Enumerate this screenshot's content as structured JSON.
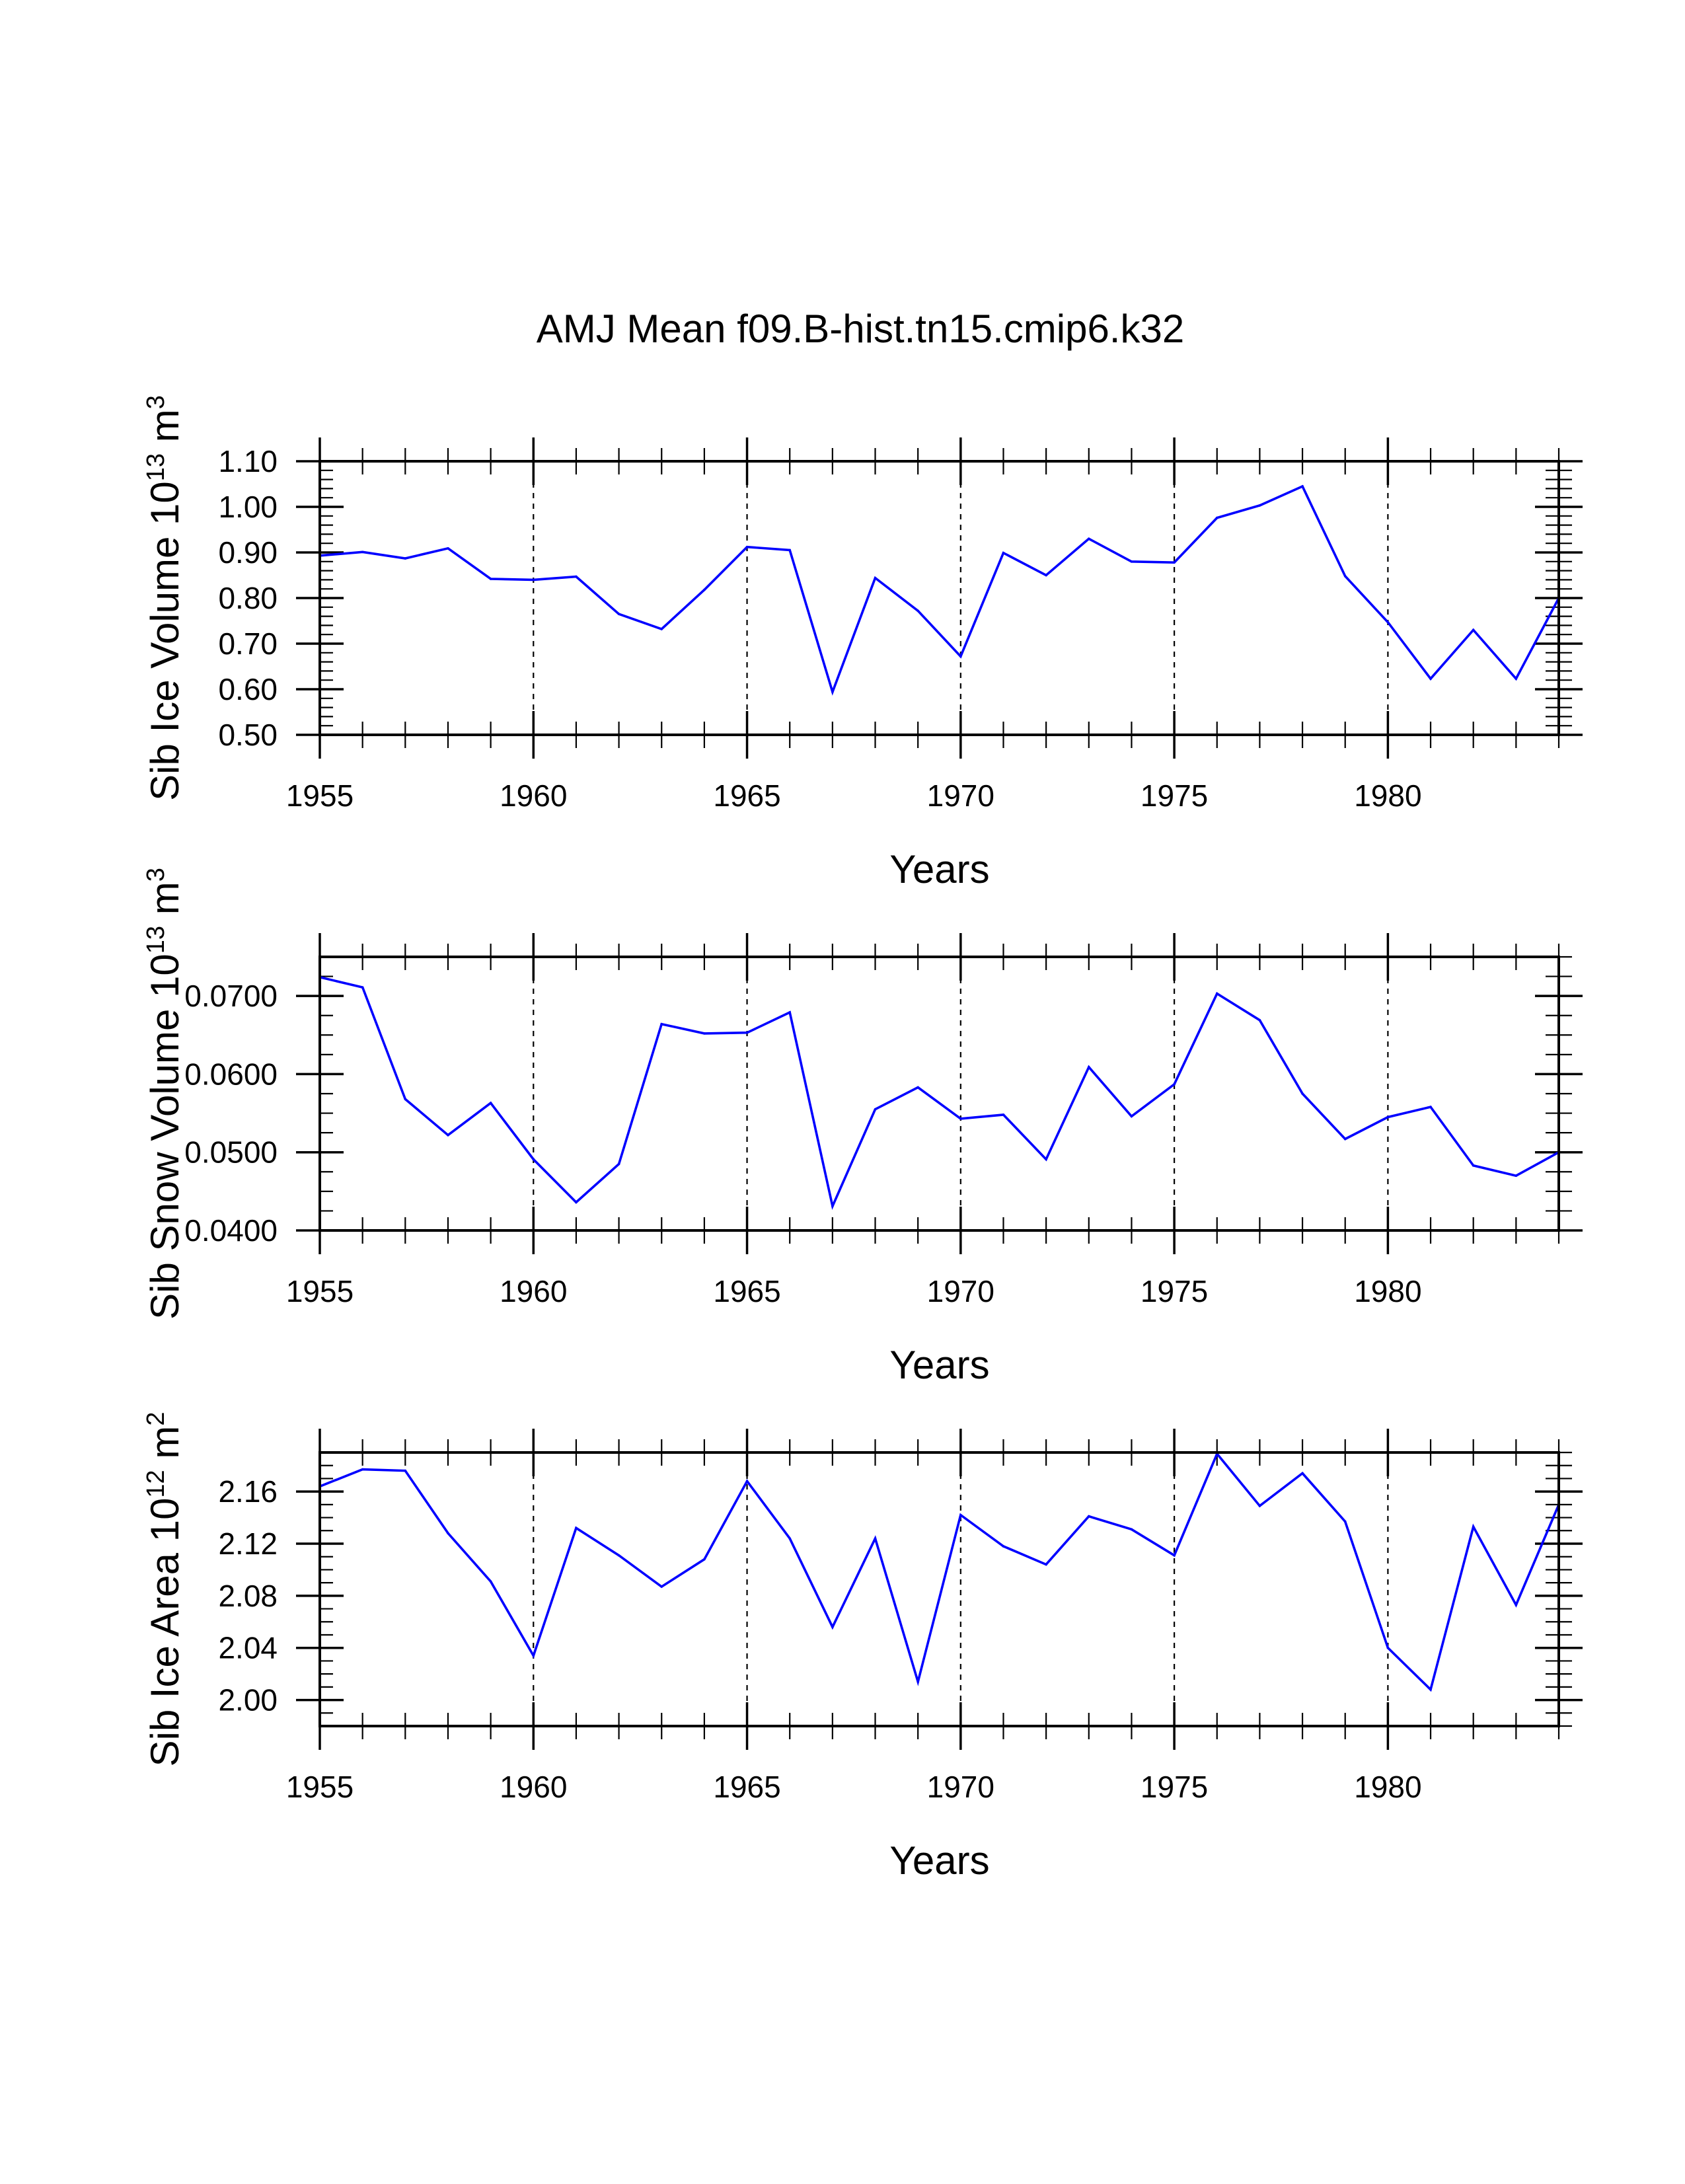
{
  "title": "AMJ Mean f09.B-hist.tn15.cmip6.k32",
  "colors": {
    "line": "#0000ff",
    "axes": "#000000",
    "background": "#ffffff"
  },
  "chart_data": [
    {
      "type": "line",
      "name": "ice-volume",
      "ylabel": "Sib Ice Volume 10",
      "ylabel_exp": "13",
      "ylabel_unit": " m",
      "ylabel_unit_exp": "3",
      "xlabel": "Years",
      "xlim": [
        1955,
        1984
      ],
      "ylim": [
        0.5,
        1.1
      ],
      "xticks": [
        1955,
        1960,
        1965,
        1970,
        1975,
        1980
      ],
      "yticks": [
        0.5,
        0.6,
        0.7,
        0.8,
        0.9,
        1.0,
        1.1
      ],
      "ytick_labels": [
        "0.50",
        "0.60",
        "0.70",
        "0.80",
        "0.90",
        "1.00",
        "1.10"
      ],
      "yminor_step": 0.02,
      "grid_x": [
        1960,
        1965,
        1970,
        1975,
        1980
      ],
      "x": [
        1955,
        1956,
        1957,
        1958,
        1959,
        1960,
        1961,
        1962,
        1963,
        1964,
        1965,
        1966,
        1967,
        1968,
        1969,
        1970,
        1971,
        1972,
        1973,
        1974,
        1975,
        1976,
        1977,
        1978,
        1979,
        1980,
        1981,
        1982,
        1983,
        1984
      ],
      "values": [
        0.893,
        0.901,
        0.887,
        0.909,
        0.842,
        0.84,
        0.847,
        0.765,
        0.732,
        0.818,
        0.912,
        0.905,
        0.594,
        0.844,
        0.772,
        0.672,
        0.899,
        0.85,
        0.93,
        0.88,
        0.878,
        0.976,
        1.003,
        1.045,
        0.848,
        0.747,
        0.623,
        0.73,
        0.623,
        0.8
      ]
    },
    {
      "type": "line",
      "name": "snow-volume",
      "ylabel": "Sib Snow Volume 10",
      "ylabel_exp": "13",
      "ylabel_unit": " m",
      "ylabel_unit_exp": "3",
      "xlabel": "Years",
      "xlim": [
        1955,
        1984
      ],
      "ylim": [
        0.04,
        0.075
      ],
      "xticks": [
        1955,
        1960,
        1965,
        1970,
        1975,
        1980
      ],
      "yticks": [
        0.04,
        0.05,
        0.06,
        0.07
      ],
      "ytick_labels": [
        "0.0400",
        "0.0500",
        "0.0600",
        "0.0700"
      ],
      "yminor_step": 0.0025,
      "grid_x": [
        1960,
        1965,
        1970,
        1975,
        1980
      ],
      "x": [
        1955,
        1956,
        1957,
        1958,
        1959,
        1960,
        1961,
        1962,
        1963,
        1964,
        1965,
        1966,
        1967,
        1968,
        1969,
        1970,
        1971,
        1972,
        1973,
        1974,
        1975,
        1976,
        1977,
        1978,
        1979,
        1980,
        1981,
        1982,
        1983,
        1984
      ],
      "values": [
        0.0724,
        0.0711,
        0.0568,
        0.0522,
        0.0563,
        0.0491,
        0.0436,
        0.0485,
        0.0664,
        0.0652,
        0.0653,
        0.0679,
        0.0431,
        0.0555,
        0.0583,
        0.0543,
        0.0548,
        0.0491,
        0.0609,
        0.0546,
        0.0587,
        0.0703,
        0.0669,
        0.0575,
        0.0517,
        0.0545,
        0.0558,
        0.0483,
        0.047,
        0.05
      ]
    },
    {
      "type": "line",
      "name": "ice-area",
      "ylabel": "Sib Ice Area 10",
      "ylabel_exp": "12",
      "ylabel_unit": " m",
      "ylabel_unit_exp": "2",
      "xlabel": "Years",
      "xlim": [
        1955,
        1984
      ],
      "ylim": [
        1.98,
        2.19
      ],
      "xticks": [
        1955,
        1960,
        1965,
        1970,
        1975,
        1980
      ],
      "yticks": [
        2.0,
        2.04,
        2.08,
        2.12,
        2.16
      ],
      "ytick_labels": [
        "2.00",
        "2.04",
        "2.08",
        "2.12",
        "2.16"
      ],
      "yminor_step": 0.01,
      "grid_x": [
        1960,
        1965,
        1970,
        1975,
        1980
      ],
      "x": [
        1955,
        1956,
        1957,
        1958,
        1959,
        1960,
        1961,
        1962,
        1963,
        1964,
        1965,
        1966,
        1967,
        1968,
        1969,
        1970,
        1971,
        1972,
        1973,
        1974,
        1975,
        1976,
        1977,
        1978,
        1979,
        1980,
        1981,
        1982,
        1983,
        1984
      ],
      "values": [
        2.164,
        2.177,
        2.176,
        2.128,
        2.091,
        2.034,
        2.132,
        2.111,
        2.087,
        2.108,
        2.168,
        2.124,
        2.056,
        2.124,
        2.014,
        2.142,
        2.118,
        2.104,
        2.141,
        2.131,
        2.111,
        2.189,
        2.149,
        2.174,
        2.137,
        2.04,
        2.008,
        2.133,
        2.073,
        2.15
      ]
    }
  ]
}
